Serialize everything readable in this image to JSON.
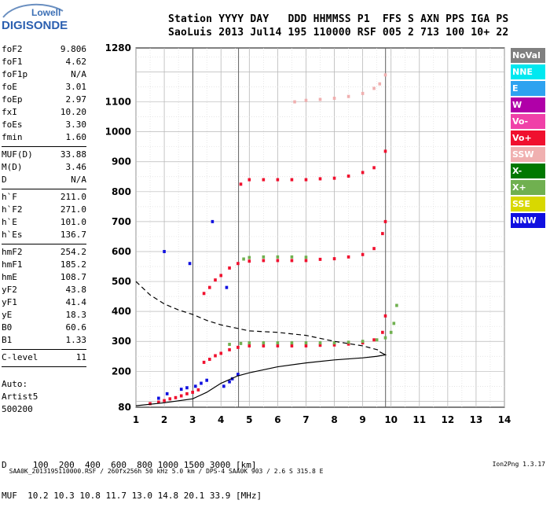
{
  "logo": {
    "line1": "Lowell",
    "line2": "DIGISONDE"
  },
  "header": {
    "row1": "Station YYYY DAY   DDD HHMMSS P1  FFS S AXN PPS IGA PS",
    "row2": "SaoLuis 2013 Jul14 195 110000 RSF 005 2 713 100 10+ 22"
  },
  "params": {
    "group1": [
      {
        "name": "foF2",
        "value": "9.806"
      },
      {
        "name": "foF1",
        "value": "4.62"
      },
      {
        "name": "foF1p",
        "value": "N/A"
      },
      {
        "name": "foE",
        "value": "3.01"
      },
      {
        "name": "foEp",
        "value": "2.97"
      },
      {
        "name": "fxI",
        "value": "10.20"
      },
      {
        "name": "foEs",
        "value": "3.30"
      },
      {
        "name": "fmin",
        "value": "1.60"
      }
    ],
    "group2": [
      {
        "name": "MUF(D)",
        "value": "33.88"
      },
      {
        "name": "M(D)",
        "value": "3.46"
      },
      {
        "name": "D",
        "value": "N/A"
      }
    ],
    "group3": [
      {
        "name": "h`F",
        "value": "211.0"
      },
      {
        "name": "h`F2",
        "value": "271.0"
      },
      {
        "name": "h`E",
        "value": "101.0"
      },
      {
        "name": "h`Es",
        "value": "136.7"
      }
    ],
    "group4": [
      {
        "name": "hmF2",
        "value": "254.2"
      },
      {
        "name": "hmF1",
        "value": "185.2"
      },
      {
        "name": "hmE",
        "value": "108.7"
      },
      {
        "name": "yF2",
        "value": "43.8"
      },
      {
        "name": "yF1",
        "value": "41.4"
      },
      {
        "name": "yE",
        "value": "18.3"
      },
      {
        "name": "B0",
        "value": "60.6"
      },
      {
        "name": "B1",
        "value": "1.33"
      }
    ],
    "group5": [
      {
        "name": "C-level",
        "value": "11"
      }
    ]
  },
  "auto": {
    "line1": "Auto:",
    "line2": "Artist5",
    "line3": "500200"
  },
  "muf_table": {
    "row1": "D     100  200  400  600  800 1000 1500 3000 [km]",
    "row2": "MUF  10.2 10.3 10.8 11.7 13.0 14.8 20.1 33.9 [MHz]"
  },
  "footer": {
    "left": "SAA0K_2013195110000.RSF / 260fx256h 50 kHz 5.0 km / DPS-4 SAA0K 903 / 2.6 S 315.8 E",
    "right": "Ion2Png 1.3.17"
  },
  "legend": [
    {
      "label": "NoVal",
      "color": "#808080"
    },
    {
      "label": "NNE",
      "color": "#00e8f0"
    },
    {
      "label": "E",
      "color": "#2ea2f0"
    },
    {
      "label": "W",
      "color": "#b000a8"
    },
    {
      "label": "Vo-",
      "color": "#f040a8"
    },
    {
      "label": "Vo+",
      "color": "#f0102e"
    },
    {
      "label": "SSW",
      "color": "#f0b0b0"
    },
    {
      "label": "X-",
      "color": "#007800"
    },
    {
      "label": "X+",
      "color": "#70b050"
    },
    {
      "label": "SSE",
      "color": "#d8d800"
    },
    {
      "label": "NNW",
      "color": "#1010e0"
    }
  ],
  "chart_data": {
    "type": "scatter",
    "title": "",
    "xlabel": "",
    "ylabel": "",
    "x_unit": "MHz",
    "y_unit": "km",
    "xlim": [
      1,
      14
    ],
    "ylim": [
      80,
      1280
    ],
    "x_ticks": [
      "1",
      "2",
      "3",
      "4",
      "5",
      "6",
      "7",
      "8",
      "9",
      "10",
      "11",
      "12",
      "13",
      "14"
    ],
    "y_ticks": [
      "80",
      "200",
      "300",
      "400",
      "500",
      "600",
      "700",
      "800",
      "900",
      "1000",
      "1100",
      "1280"
    ],
    "grid": true,
    "legend_position": "right",
    "vertical_markers": [
      3.01,
      4.62,
      9.806
    ],
    "series": [
      {
        "name": "Vo+",
        "color": "#f0102e",
        "type": "points",
        "x": [
          3.4,
          3.6,
          3.8,
          4.0,
          4.3,
          4.6,
          5.0,
          5.5,
          6.0,
          6.5,
          7.0,
          7.5,
          8.0,
          8.5,
          9.0,
          9.4,
          9.7,
          9.8
        ],
        "y": [
          230,
          240,
          252,
          260,
          272,
          280,
          285,
          285,
          285,
          285,
          285,
          287,
          288,
          291,
          295,
          305,
          330,
          385
        ]
      },
      {
        "name": "X+",
        "color": "#70b050",
        "type": "points",
        "x": [
          4.3,
          4.7,
          5.0,
          5.5,
          6.0,
          6.5,
          7.0,
          7.5,
          8.0,
          8.5,
          9.0,
          9.5,
          9.8,
          10.0,
          10.1,
          10.2
        ],
        "y": [
          290,
          293,
          295,
          295,
          295,
          295,
          295,
          295,
          295,
          297,
          300,
          305,
          312,
          330,
          360,
          420
        ]
      },
      {
        "name": "Vo+",
        "color": "#f0102e",
        "type": "points",
        "x": [
          3.4,
          3.6,
          3.8,
          4.0,
          4.3,
          4.6,
          5.0,
          5.5,
          6.0,
          6.5,
          7.0,
          7.5,
          8.0,
          8.5,
          9.0,
          9.4,
          9.7,
          9.8
        ],
        "y": [
          460,
          480,
          505,
          520,
          545,
          560,
          568,
          570,
          570,
          570,
          570,
          574,
          576,
          582,
          590,
          610,
          660,
          700
        ]
      },
      {
        "name": "X+",
        "color": "#70b050",
        "type": "points",
        "x": [
          4.8,
          5.0,
          5.5,
          6.0,
          6.5,
          7.0
        ],
        "y": [
          575,
          580,
          582,
          582,
          582,
          581
        ]
      },
      {
        "name": "Vo+",
        "color": "#f0102e",
        "type": "points",
        "x": [
          4.7,
          5.0,
          5.5,
          6.0,
          6.5,
          7.0,
          7.5,
          8.0,
          8.5,
          9.0,
          9.4,
          9.8
        ],
        "y": [
          825,
          840,
          840,
          840,
          840,
          840,
          843,
          845,
          852,
          864,
          880,
          935
        ]
      },
      {
        "name": "SSW",
        "color": "#f0b0b0",
        "type": "points",
        "x": [
          6.6,
          7.0,
          7.5,
          8.0,
          8.5,
          9.0,
          9.4,
          9.6,
          9.8
        ],
        "y": [
          1100,
          1105,
          1108,
          1112,
          1118,
          1128,
          1145,
          1160,
          1190
        ]
      },
      {
        "name": "Vo+",
        "color": "#f0102e",
        "type": "points",
        "x": [
          1.5,
          1.8,
          2.0,
          2.2,
          2.4,
          2.6,
          2.8,
          3.0,
          3.2
        ],
        "y": [
          92,
          97,
          102,
          108,
          112,
          118,
          125,
          130,
          138
        ]
      },
      {
        "name": "NNW",
        "color": "#1010e0",
        "type": "points",
        "x": [
          1.8,
          2.1,
          2.6,
          2.8,
          3.1,
          3.3,
          3.5,
          4.1,
          4.3,
          4.4,
          4.6,
          2.0,
          2.9,
          3.7,
          4.2
        ],
        "y": [
          110,
          125,
          140,
          145,
          150,
          160,
          170,
          150,
          165,
          175,
          190,
          600,
          560,
          700,
          480
        ]
      },
      {
        "name": "profile",
        "color": "#000000",
        "type": "line",
        "x": [
          1.0,
          2.0,
          3.0,
          3.5,
          4.0,
          4.6,
          5.0,
          6.0,
          7.0,
          8.0,
          9.0,
          9.5,
          9.8,
          9.6
        ],
        "y": [
          85,
          95,
          108,
          130,
          160,
          185,
          195,
          215,
          228,
          238,
          245,
          250,
          255,
          265
        ]
      },
      {
        "name": "dashed",
        "color": "#000000",
        "type": "dashed",
        "x": [
          1.0,
          1.5,
          2.0,
          2.5,
          3.0,
          3.5,
          4.0,
          4.5,
          5.0,
          6.0,
          7.0,
          8.0,
          9.0,
          9.6
        ],
        "y": [
          500,
          455,
          425,
          405,
          390,
          370,
          355,
          345,
          335,
          330,
          320,
          300,
          285,
          270
        ]
      }
    ]
  }
}
